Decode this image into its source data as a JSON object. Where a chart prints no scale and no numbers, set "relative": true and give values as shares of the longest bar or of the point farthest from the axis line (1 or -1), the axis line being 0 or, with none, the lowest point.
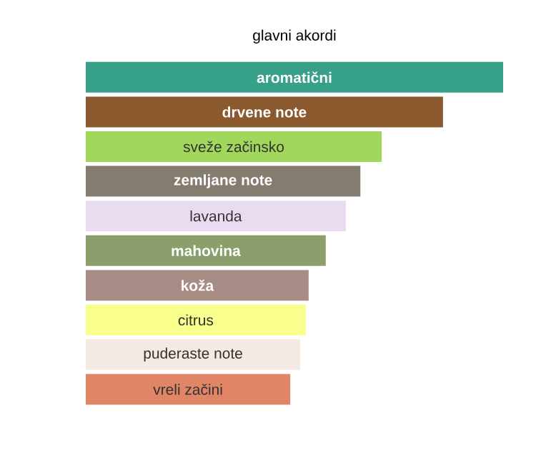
{
  "chart_data": {
    "type": "bar",
    "orientation": "horizontal",
    "relative": true,
    "title": "glavni akordi",
    "categories": [
      "aromatični",
      "drvene note",
      "sveže začinsko",
      "zemljane note",
      "lavanda",
      "mahovina",
      "koža",
      "citrus",
      "puderaste note",
      "vreli začini"
    ],
    "values": [
      1,
      0.856,
      0.709,
      0.658,
      0.623,
      0.575,
      0.534,
      0.527,
      0.514,
      0.49
    ],
    "colors": [
      "#37a089",
      "#8a5a2e",
      "#a1d75a",
      "#857c70",
      "#eadcf0",
      "#8c9e6c",
      "#a88c86",
      "#f9ff8c",
      "#f2eae3",
      "#e08566"
    ]
  }
}
